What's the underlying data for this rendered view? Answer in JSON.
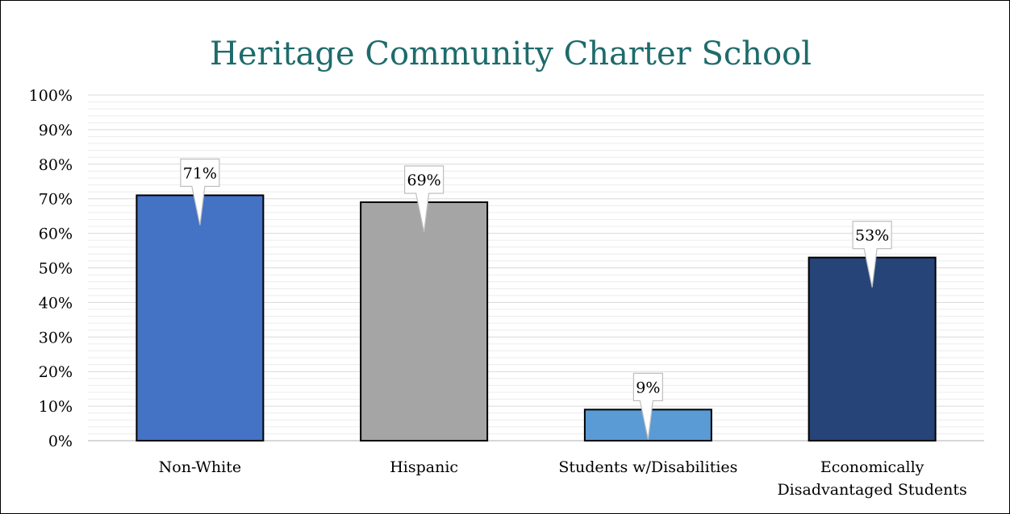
{
  "chart_data": {
    "type": "bar",
    "title": "Heritage Community Charter School",
    "xlabel": "",
    "ylabel": "",
    "ylim": [
      0,
      100
    ],
    "yticks": [
      0,
      10,
      20,
      30,
      40,
      50,
      60,
      70,
      80,
      90,
      100
    ],
    "ytick_labels": [
      "0%",
      "10%",
      "20%",
      "30%",
      "40%",
      "50%",
      "60%",
      "70%",
      "80%",
      "90%",
      "100%"
    ],
    "categories": [
      "Non-White",
      "Hispanic",
      "Students w/Disabilities",
      "Economically Disadvantaged Students"
    ],
    "values": [
      71,
      69,
      9,
      53
    ],
    "data_labels": [
      "71%",
      "69%",
      "9%",
      "53%"
    ],
    "bar_colors": [
      "#4472c4",
      "#a5a5a5",
      "#5b9bd5",
      "#264478"
    ],
    "title_color": "#1f6b6b",
    "grid": true,
    "legend": "none"
  }
}
